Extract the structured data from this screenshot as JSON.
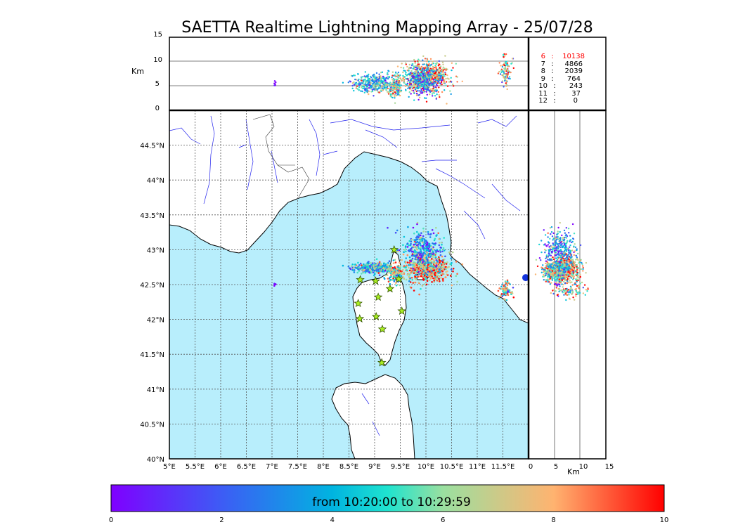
{
  "chart_data": {
    "type": "scatter",
    "title": "SAETTA Realtime Lightning Mapping Array - 25/07/28",
    "colors": {
      "sea": "#b8eefc",
      "land": "#ffffff",
      "coast": "#000000",
      "rivers": "#2222ee",
      "borders": "#333333",
      "station_fill": "#aaee22",
      "station_edge": "#335500",
      "highlight_text": "#ff0000",
      "cluster_marker": "#1133dd"
    },
    "map": {
      "lon_range": [
        5.0,
        12.0
      ],
      "lat_range": [
        40.0,
        45.0
      ],
      "x_ticks": [
        "5°E",
        "5.5°E",
        "6°E",
        "6.5°E",
        "7°E",
        "7.5°E",
        "8°E",
        "8.5°E",
        "9°E",
        "9.5°E",
        "10°E",
        "10.5°E",
        "11°E",
        "11.5°E"
      ],
      "x_tick_values": [
        5.0,
        5.5,
        6.0,
        6.5,
        7.0,
        7.5,
        8.0,
        8.5,
        9.0,
        9.5,
        10.0,
        10.5,
        11.0,
        11.5
      ],
      "y_ticks": [
        "40°N",
        "40.5°N",
        "41°N",
        "41.5°N",
        "42°N",
        "42.5°N",
        "43°N",
        "43.5°N",
        "44°N",
        "44.5°N"
      ],
      "y_tick_values": [
        40.0,
        40.5,
        41.0,
        41.5,
        42.0,
        42.5,
        43.0,
        43.5,
        44.0,
        44.5
      ]
    },
    "altitude_panel": {
      "ylabel": "Km",
      "range": [
        0,
        15
      ],
      "ticks": [
        "0",
        "5",
        "10",
        "15"
      ],
      "tick_values": [
        0,
        5,
        10,
        15
      ]
    },
    "side_panel": {
      "xlabel": "Km",
      "range": [
        0,
        15
      ],
      "ticks": [
        "0",
        "5",
        "10",
        "15"
      ],
      "tick_values": [
        0,
        5,
        10,
        15
      ]
    },
    "station_counts": [
      {
        "stations": "6",
        "sep": ":",
        "count": "10138",
        "highlight": true
      },
      {
        "stations": "7",
        "sep": ":",
        "count": "4866",
        "highlight": false
      },
      {
        "stations": "8",
        "sep": ":",
        "count": "2039",
        "highlight": false
      },
      {
        "stations": "9",
        "sep": ":",
        "count": "764",
        "highlight": false
      },
      {
        "stations": "10",
        "sep": ":",
        "count": "243",
        "highlight": false
      },
      {
        "stations": "11",
        "sep": ":",
        "count": "37",
        "highlight": false
      },
      {
        "stations": "12",
        "sep": ":",
        "count": "0",
        "highlight": false
      }
    ],
    "stations": [
      {
        "lon": 9.38,
        "lat": 43.0
      },
      {
        "lon": 8.72,
        "lat": 42.57
      },
      {
        "lon": 9.02,
        "lat": 42.55
      },
      {
        "lon": 9.47,
        "lat": 42.58
      },
      {
        "lon": 9.3,
        "lat": 42.44
      },
      {
        "lon": 9.07,
        "lat": 42.32
      },
      {
        "lon": 8.68,
        "lat": 42.23
      },
      {
        "lon": 9.53,
        "lat": 42.12
      },
      {
        "lon": 8.71,
        "lat": 42.01
      },
      {
        "lon": 9.03,
        "lat": 42.04
      },
      {
        "lon": 9.15,
        "lat": 41.86
      },
      {
        "lon": 9.14,
        "lat": 41.38
      }
    ],
    "clusters": [
      {
        "lon": 10.0,
        "lat": 42.72,
        "dlon": 0.45,
        "dlat": 0.18,
        "alt": 7.0,
        "dalt": 2.5,
        "t": 7.5,
        "n": 650
      },
      {
        "lon": 9.93,
        "lat": 43.02,
        "dlon": 0.4,
        "dlat": 0.28,
        "alt": 6.0,
        "dalt": 2.5,
        "t": 3.5,
        "n": 320
      },
      {
        "lon": 8.97,
        "lat": 42.74,
        "dlon": 0.4,
        "dlat": 0.07,
        "alt": 5.5,
        "dalt": 1.5,
        "t": 4.5,
        "n": 380
      },
      {
        "lon": 9.4,
        "lat": 42.65,
        "dlon": 0.15,
        "dlat": 0.12,
        "alt": 5.0,
        "dalt": 2.0,
        "t": 6.0,
        "n": 160
      },
      {
        "lon": 11.55,
        "lat": 42.42,
        "dlon": 0.1,
        "dlat": 0.12,
        "alt": 8.0,
        "dalt": 2.5,
        "t": 6.0,
        "n": 100
      },
      {
        "lon": 7.05,
        "lat": 42.5,
        "dlon": 0.02,
        "dlat": 0.02,
        "alt": 5.8,
        "dalt": 1.2,
        "t": 0.3,
        "n": 6
      }
    ],
    "extra_marker": {
      "lon": 12.0,
      "lat": 42.6
    },
    "colorbar": {
      "label": "from 10:20:00 to 10:29:59",
      "range": [
        0,
        10
      ],
      "ticks": [
        "0",
        "2",
        "4",
        "6",
        "8",
        "10"
      ],
      "tick_values": [
        0,
        2,
        4,
        6,
        8,
        10
      ]
    }
  }
}
